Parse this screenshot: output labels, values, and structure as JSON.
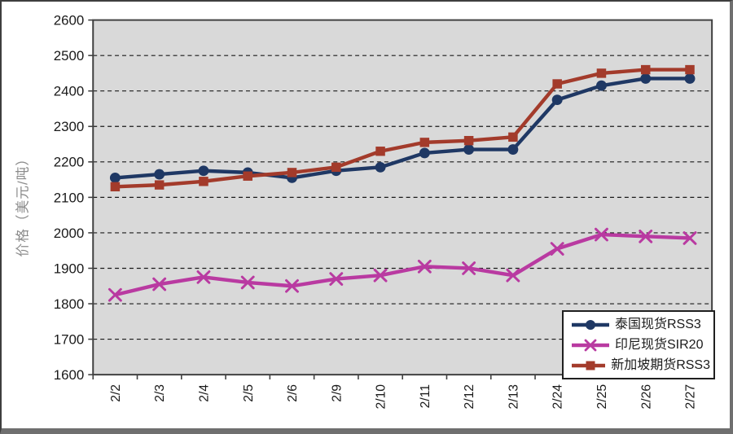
{
  "window": {
    "background": "#FFFFFF",
    "frame_color": "#3E3E3E",
    "shadow_color": "#6F6F6F"
  },
  "chart_data": {
    "type": "line",
    "title": "",
    "xlabel": "",
    "ylabel": "价格（美元/吨）",
    "ylim": [
      1600,
      2600
    ],
    "yticks": [
      1600,
      1700,
      1800,
      1900,
      2000,
      2100,
      2200,
      2300,
      2400,
      2500,
      2600
    ],
    "grid": true,
    "grid_style": "dashed",
    "plot_bg": "#D9D9D9",
    "grid_color": "#1A1A1A",
    "axis_color": "#404040",
    "legend_position": "inside-bottom-right",
    "categories": [
      "2/2",
      "2/3",
      "2/4",
      "2/5",
      "2/6",
      "2/9",
      "2/10",
      "2/11",
      "2/12",
      "2/13",
      "2/24",
      "2/25",
      "2/26",
      "2/27"
    ],
    "series": [
      {
        "id": "thailand-spot-rss3",
        "name": "泰国现货RSS3",
        "marker": "circle",
        "color": "#1F3864",
        "values": [
          2155,
          2165,
          2175,
          2170,
          2155,
          2175,
          2185,
          2225,
          2235,
          2235,
          2375,
          2415,
          2435,
          2435
        ]
      },
      {
        "id": "indonesia-spot-sir20",
        "name": "印尼现货SIR20",
        "marker": "x",
        "color": "#B93AA1",
        "values": [
          1825,
          1855,
          1875,
          1860,
          1850,
          1870,
          1880,
          1905,
          1900,
          1880,
          1955,
          1995,
          1990,
          1985
        ]
      },
      {
        "id": "singapore-futures-rss3",
        "name": "新加坡期货RSS3",
        "marker": "square",
        "color": "#A33B2B",
        "values": [
          2130,
          2135,
          2145,
          2160,
          2170,
          2185,
          2230,
          2255,
          2260,
          2270,
          2420,
          2450,
          2460,
          2460
        ]
      }
    ]
  }
}
